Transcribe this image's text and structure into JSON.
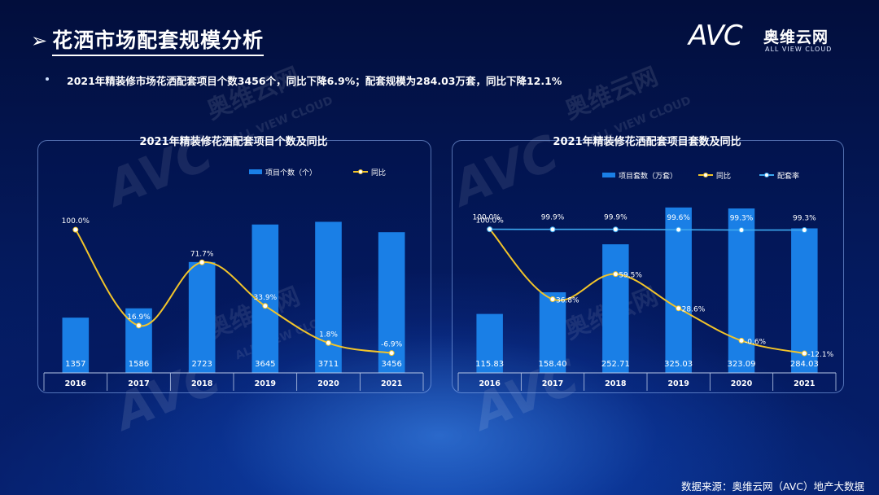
{
  "header": {
    "title": "花洒市场配套规模分析",
    "summary": "2021年精装修市场花洒配套项目个数3456个，同比下降6.9%；配套规模为284.03万套，同比下降12.1%"
  },
  "logo": {
    "brand": "AVC",
    "name_cn": "奥维云网",
    "name_en": "ALL VIEW CLOUD"
  },
  "watermarks": [
    "奥维云网",
    "ALL VIEW CLOUD",
    "AVC"
  ],
  "footer": "数据来源：奥维云网（AVC）地产大数据",
  "colors": {
    "bar": "#1a7fe6",
    "line_yoy": "#f2c42a",
    "line_rate": "#3da9f0",
    "text": "#ffffff"
  },
  "chart_data": [
    {
      "type": "bar+line",
      "title": "2021年精装修花洒配套项目个数及同比",
      "categories": [
        "2016",
        "2017",
        "2018",
        "2019",
        "2020",
        "2021"
      ],
      "series": [
        {
          "name": "项目个数（个）",
          "type": "bar",
          "values": [
            1357,
            1586,
            2723,
            3645,
            3711,
            3456
          ],
          "labels": [
            "1357",
            "1586",
            "2723",
            "3645",
            "3711",
            "3456"
          ]
        },
        {
          "name": "同比",
          "type": "line",
          "values": [
            100.0,
            16.9,
            71.7,
            33.9,
            1.8,
            -6.9
          ],
          "labels": [
            "100.0%",
            "16.9%",
            "71.7%",
            "33.9%",
            "1.8%",
            "-6.9%"
          ]
        }
      ],
      "bar_ylim": [
        0,
        4000
      ],
      "line_ylim": [
        -10,
        110
      ],
      "legend": "top-right"
    },
    {
      "type": "bar+line",
      "title": "2021年精装修花洒配套项目套数及同比",
      "categories": [
        "2016",
        "2017",
        "2018",
        "2019",
        "2020",
        "2021"
      ],
      "series": [
        {
          "name": "项目套数（万套）",
          "type": "bar",
          "values": [
            115.83,
            158.4,
            252.71,
            325.03,
            323.09,
            284.03
          ],
          "labels": [
            "115.83",
            "158.40",
            "252.71",
            "325.03",
            "323.09",
            "284.03"
          ]
        },
        {
          "name": "同比",
          "type": "line",
          "values": [
            100.0,
            36.8,
            59.5,
            28.6,
            -0.6,
            -12.1
          ],
          "labels": [
            "100.0%",
            "36.8%",
            "59.5%",
            "28.6%",
            "-0.6%",
            "-12.1%"
          ]
        },
        {
          "name": "配套率",
          "type": "line",
          "values": [
            100.0,
            99.9,
            99.9,
            99.6,
            99.3,
            99.3
          ],
          "labels": [
            "100.0%",
            "99.9%",
            "99.9%",
            "99.6%",
            "99.3%",
            "99.3%"
          ]
        }
      ],
      "bar_ylim": [
        0,
        320
      ],
      "line_ylim": [
        -15,
        110
      ],
      "legend": "top-right"
    }
  ]
}
